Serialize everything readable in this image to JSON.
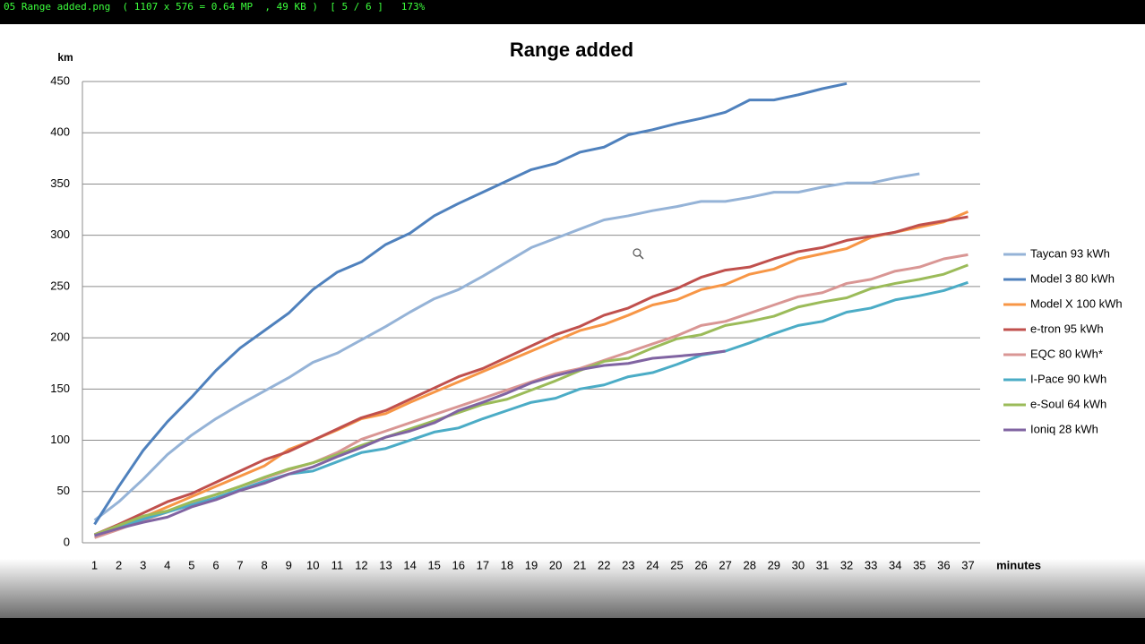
{
  "viewer_title": "05 Range added.png  ( 1107 x 576 = 0.64 MP  , 49 KB )  [ 5 / 6 ]   173%",
  "chart_data": {
    "type": "line",
    "title": "Range added",
    "y_label": "km",
    "x_label": "minutes",
    "categories": [
      1,
      2,
      3,
      4,
      5,
      6,
      7,
      8,
      9,
      10,
      11,
      12,
      13,
      14,
      15,
      16,
      17,
      18,
      19,
      20,
      21,
      22,
      23,
      24,
      25,
      26,
      27,
      28,
      29,
      30,
      31,
      32,
      33,
      34,
      35,
      36,
      37
    ],
    "ylim": [
      0,
      450
    ],
    "yticks": [
      0,
      50,
      100,
      150,
      200,
      250,
      300,
      350,
      400,
      450
    ],
    "grid": true,
    "legend": "right",
    "series": [
      {
        "name": "Taycan 93 kWh",
        "color": "#95b3d7",
        "values": [
          22,
          40,
          62,
          86,
          105,
          121,
          135,
          148,
          161,
          176,
          185,
          198,
          211,
          225,
          238,
          247,
          260,
          274,
          288,
          297,
          306,
          315,
          319,
          324,
          328,
          333,
          333,
          337,
          342,
          342,
          347,
          351,
          351,
          356,
          360,
          null,
          null
        ]
      },
      {
        "name": "Model 3 80 kWh",
        "color": "#4f81bd",
        "values": [
          18,
          55,
          90,
          118,
          142,
          168,
          190,
          207,
          224,
          247,
          264,
          274,
          291,
          302,
          319,
          331,
          342,
          353,
          364,
          370,
          381,
          386,
          398,
          403,
          409,
          414,
          420,
          432,
          432,
          437,
          443,
          448,
          null,
          null,
          null,
          null,
          null
        ]
      },
      {
        "name": "Model X 100 kWh",
        "color": "#f79646",
        "values": [
          7,
          16,
          25,
          35,
          45,
          55,
          65,
          75,
          91,
          100,
          110,
          121,
          126,
          137,
          147,
          157,
          167,
          177,
          187,
          197,
          207,
          213,
          222,
          232,
          237,
          247,
          252,
          262,
          267,
          277,
          282,
          287,
          298,
          303,
          308,
          313,
          323
        ]
      },
      {
        "name": "e-tron 95 kWh",
        "color": "#c0504d",
        "values": [
          8,
          18,
          29,
          40,
          48,
          59,
          70,
          81,
          89,
          100,
          111,
          122,
          129,
          140,
          151,
          162,
          170,
          181,
          192,
          203,
          211,
          222,
          229,
          240,
          248,
          259,
          266,
          269,
          277,
          284,
          288,
          295,
          299,
          303,
          310,
          314,
          318
        ]
      },
      {
        "name": "EQC 80 kWh*",
        "color": "#d99694",
        "values": [
          5,
          13,
          22,
          30,
          39,
          47,
          55,
          63,
          71,
          78,
          88,
          101,
          109,
          117,
          125,
          133,
          141,
          149,
          157,
          165,
          170,
          178,
          186,
          194,
          202,
          212,
          216,
          224,
          232,
          240,
          244,
          253,
          257,
          265,
          269,
          277,
          281
        ]
      },
      {
        "name": "I-Pace 90 kWh",
        "color": "#4bacc6",
        "values": [
          7,
          15,
          23,
          30,
          37,
          44,
          52,
          60,
          67,
          70,
          79,
          88,
          92,
          100,
          108,
          112,
          121,
          129,
          137,
          141,
          150,
          154,
          162,
          166,
          174,
          183,
          187,
          195,
          204,
          212,
          216,
          225,
          229,
          237,
          241,
          246,
          254
        ]
      },
      {
        "name": "e-Soul 64 kWh",
        "color": "#9bbb59",
        "values": [
          8,
          17,
          26,
          31,
          40,
          47,
          55,
          64,
          72,
          78,
          86,
          95,
          103,
          111,
          119,
          127,
          135,
          140,
          149,
          158,
          168,
          177,
          180,
          190,
          199,
          203,
          212,
          216,
          221,
          230,
          235,
          239,
          248,
          253,
          257,
          262,
          271
        ]
      },
      {
        "name": "Ioniq 28 kWh",
        "color": "#8064a2",
        "values": [
          7,
          14,
          20,
          25,
          35,
          42,
          51,
          58,
          67,
          74,
          84,
          93,
          103,
          109,
          117,
          129,
          137,
          146,
          156,
          163,
          169,
          173,
          175,
          180,
          182,
          184,
          187,
          null,
          null,
          null,
          null,
          null,
          null,
          null,
          null,
          null,
          null
        ]
      }
    ]
  }
}
